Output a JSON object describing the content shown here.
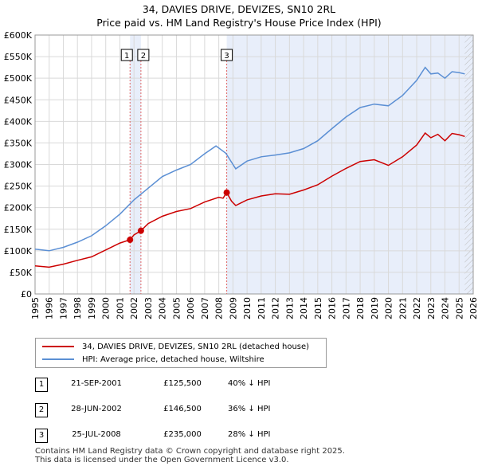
{
  "chart_data": {
    "type": "line",
    "title": "34, DAVIES DRIVE, DEVIZES, SN10 2RL",
    "subtitle": "Price paid vs. HM Land Registry's House Price Index (HPI)",
    "xlabel": "",
    "ylabel": "",
    "xlim": [
      1995,
      2026
    ],
    "ylim": [
      0,
      600000
    ],
    "x_ticks": [
      "1995",
      "1996",
      "1997",
      "1998",
      "1999",
      "2000",
      "2001",
      "2002",
      "2003",
      "2004",
      "2005",
      "2006",
      "2007",
      "2008",
      "2009",
      "2010",
      "2011",
      "2012",
      "2013",
      "2014",
      "2015",
      "2016",
      "2017",
      "2018",
      "2019",
      "2020",
      "2021",
      "2022",
      "2023",
      "2024",
      "2025",
      "2026"
    ],
    "y_ticks": [
      {
        "value": 0,
        "label": "£0"
      },
      {
        "value": 50000,
        "label": "£50K"
      },
      {
        "value": 100000,
        "label": "£100K"
      },
      {
        "value": 150000,
        "label": "£150K"
      },
      {
        "value": 200000,
        "label": "£200K"
      },
      {
        "value": 250000,
        "label": "£250K"
      },
      {
        "value": 300000,
        "label": "£300K"
      },
      {
        "value": 350000,
        "label": "£350K"
      },
      {
        "value": 400000,
        "label": "£400K"
      },
      {
        "value": 450000,
        "label": "£450K"
      },
      {
        "value": 500000,
        "label": "£500K"
      },
      {
        "value": 550000,
        "label": "£550K"
      },
      {
        "value": 600000,
        "label": "£600K"
      }
    ],
    "grid": true,
    "series": [
      {
        "name": "34, DAVIES DRIVE, DEVIZES, SN10 2RL (detached house)",
        "color": "#cc0000",
        "points": [
          [
            1995,
            65000
          ],
          [
            1996,
            62000
          ],
          [
            1997,
            69000
          ],
          [
            1998,
            78000
          ],
          [
            1999,
            86000
          ],
          [
            2000,
            102000
          ],
          [
            2001,
            118000
          ],
          [
            2001.72,
            125500
          ],
          [
            2002.0,
            137000
          ],
          [
            2002.49,
            146500
          ],
          [
            2003,
            163000
          ],
          [
            2004,
            180000
          ],
          [
            2005,
            191000
          ],
          [
            2006,
            198000
          ],
          [
            2007,
            213000
          ],
          [
            2008,
            224000
          ],
          [
            2008.3,
            222000
          ],
          [
            2008.56,
            235000
          ],
          [
            2008.9,
            215000
          ],
          [
            2009.2,
            205000
          ],
          [
            2010,
            218000
          ],
          [
            2011,
            227000
          ],
          [
            2012,
            232000
          ],
          [
            2013,
            231000
          ],
          [
            2014,
            241000
          ],
          [
            2015,
            253000
          ],
          [
            2016,
            273000
          ],
          [
            2017,
            291000
          ],
          [
            2018,
            307000
          ],
          [
            2019,
            311000
          ],
          [
            2020,
            298000
          ],
          [
            2021,
            318000
          ],
          [
            2022,
            345000
          ],
          [
            2022.6,
            373000
          ],
          [
            2023,
            362000
          ],
          [
            2023.5,
            370000
          ],
          [
            2024,
            355000
          ],
          [
            2024.5,
            372000
          ],
          [
            2025,
            369000
          ],
          [
            2025.4,
            365000
          ]
        ]
      },
      {
        "name": "HPI: Average price, detached house, Wiltshire",
        "color": "#5b8fd4",
        "points": [
          [
            1995,
            104000
          ],
          [
            1996,
            100000
          ],
          [
            1997,
            108000
          ],
          [
            1998,
            120000
          ],
          [
            1999,
            135000
          ],
          [
            2000,
            158000
          ],
          [
            2001,
            185000
          ],
          [
            2002,
            218000
          ],
          [
            2003,
            245000
          ],
          [
            2004,
            272000
          ],
          [
            2005,
            287000
          ],
          [
            2006,
            300000
          ],
          [
            2007,
            325000
          ],
          [
            2007.8,
            343000
          ],
          [
            2008.5,
            326000
          ],
          [
            2009.2,
            290000
          ],
          [
            2010,
            308000
          ],
          [
            2011,
            318000
          ],
          [
            2012,
            322000
          ],
          [
            2013,
            327000
          ],
          [
            2014,
            337000
          ],
          [
            2015,
            355000
          ],
          [
            2016,
            383000
          ],
          [
            2017,
            410000
          ],
          [
            2018,
            432000
          ],
          [
            2019,
            440000
          ],
          [
            2020,
            436000
          ],
          [
            2021,
            460000
          ],
          [
            2022,
            495000
          ],
          [
            2022.6,
            525000
          ],
          [
            2023,
            510000
          ],
          [
            2023.5,
            512000
          ],
          [
            2024,
            500000
          ],
          [
            2024.5,
            515000
          ],
          [
            2025,
            513000
          ],
          [
            2025.4,
            510000
          ]
        ]
      }
    ],
    "sale_markers": [
      {
        "label": "1",
        "x": 2001.72,
        "y": 125500
      },
      {
        "label": "2",
        "x": 2002.49,
        "y": 146500
      },
      {
        "label": "3",
        "x": 2008.56,
        "y": 235000
      }
    ],
    "shaded_ranges": [
      [
        2001.72,
        2002.49
      ],
      [
        2008.56,
        2026
      ]
    ],
    "hatched_range": [
      2025.4,
      2026
    ]
  },
  "legend": [
    {
      "label": "34, DAVIES DRIVE, DEVIZES, SN10 2RL (detached house)",
      "color": "#cc0000"
    },
    {
      "label": "HPI: Average price, detached house, Wiltshire",
      "color": "#5b8fd4"
    }
  ],
  "sales": [
    {
      "num": "1",
      "date": "21-SEP-2001",
      "price": "£125,500",
      "hpi": "40% ↓ HPI"
    },
    {
      "num": "2",
      "date": "28-JUN-2002",
      "price": "£146,500",
      "hpi": "36% ↓ HPI"
    },
    {
      "num": "3",
      "date": "25-JUL-2008",
      "price": "£235,000",
      "hpi": "28% ↓ HPI"
    }
  ],
  "footer": {
    "line1": "Contains HM Land Registry data © Crown copyright and database right 2025.",
    "line2": "This data is licensed under the Open Government Licence v3.0."
  }
}
